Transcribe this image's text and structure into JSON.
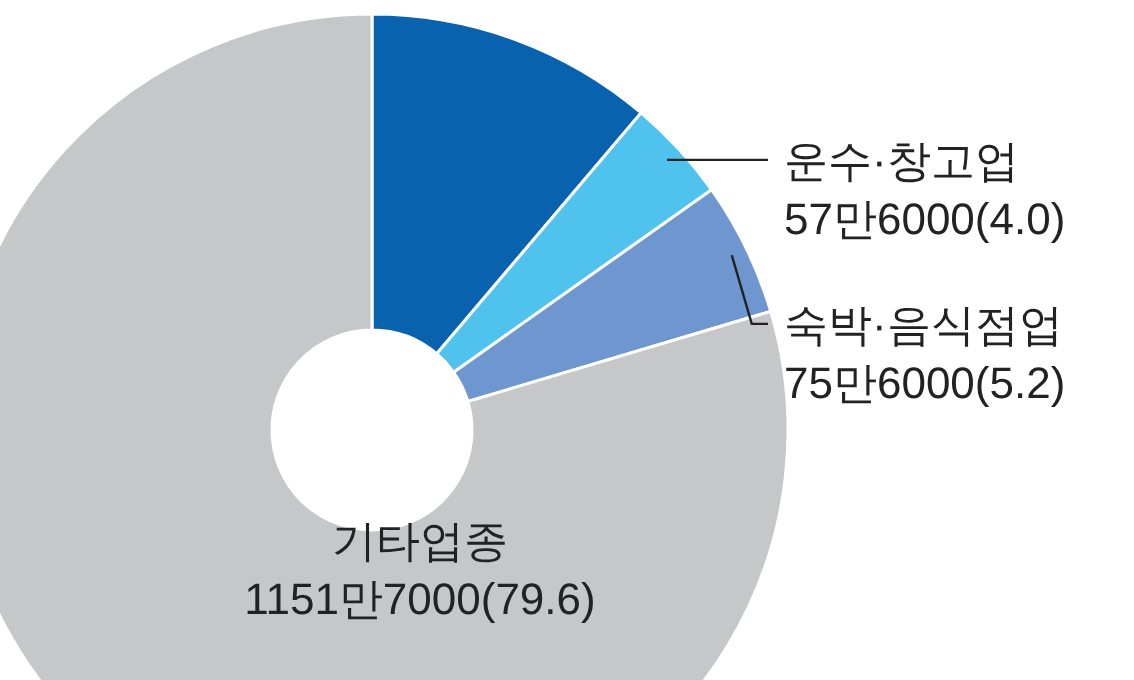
{
  "chart_data": {
    "type": "donut",
    "categories": [
      null,
      "운수·창고업",
      "숙박·음식점업",
      "기타업종"
    ],
    "values": [
      11.2,
      4.0,
      5.2,
      79.6
    ],
    "colors": [
      "#0862ad",
      "#4fc3ee",
      "#6f97cf",
      "#c6c7c9"
    ],
    "value_labels": [
      null,
      "57만6000(4.0)",
      "75만6000(5.2)",
      "1151만7000(79.6)"
    ]
  }
}
